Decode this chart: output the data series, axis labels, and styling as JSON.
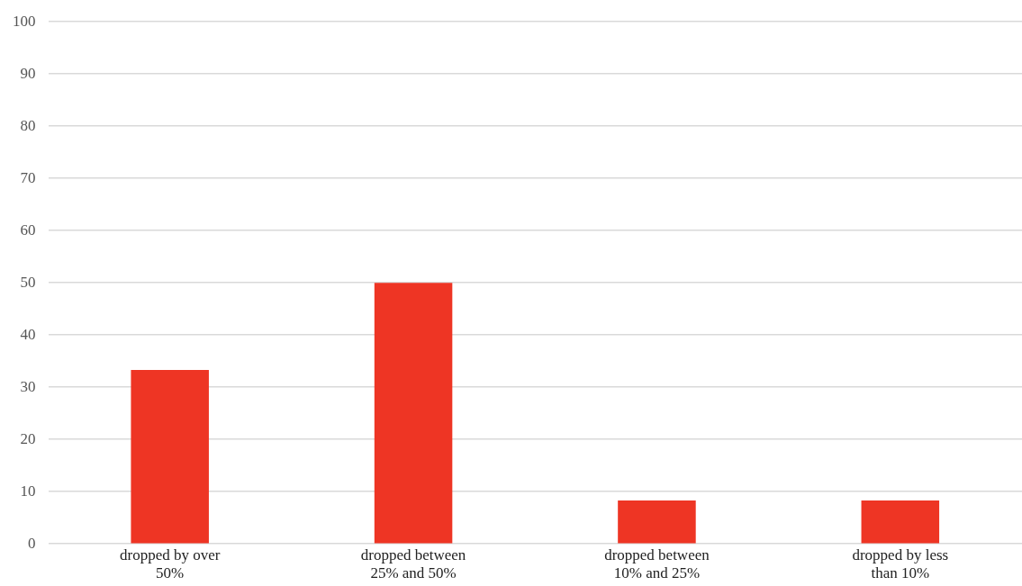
{
  "chart_data": {
    "type": "bar",
    "categories": [
      "dropped by over 50%",
      "dropped between 25% and 50%",
      "dropped between 10% and 25%",
      "dropped by less than 10%"
    ],
    "values": [
      33.3,
      50,
      8.3,
      8.3
    ],
    "color": "#ee3524",
    "ylim": [
      0,
      100
    ],
    "yticks": [
      0,
      10,
      20,
      30,
      40,
      50,
      60,
      70,
      80,
      90,
      100
    ],
    "grid": "y"
  }
}
